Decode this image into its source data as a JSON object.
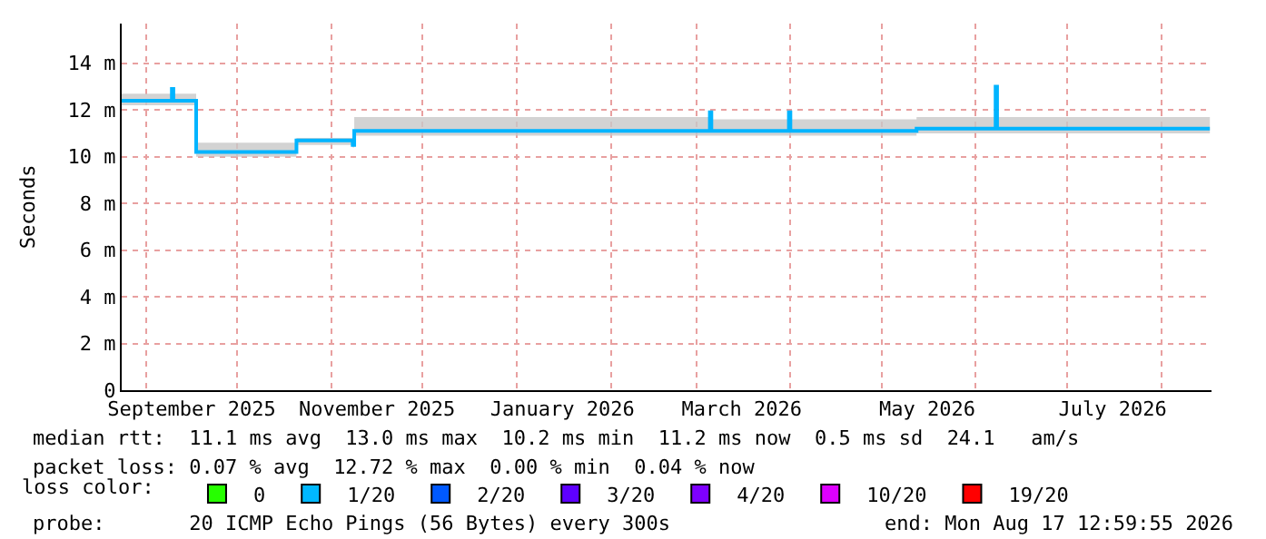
{
  "chart_data": {
    "type": "line",
    "ylabel": "Seconds",
    "legend_title": "loss color:",
    "legend": "bottom",
    "x": [
      "2025-08-24",
      "2025-09-09",
      "2025-09-09T12:00",
      "2025-09-10",
      "2025-09-17",
      "2025-09-17T12:00",
      "2025-10-20",
      "2025-10-20T12:00",
      "2025-11-07",
      "2025-11-08",
      "2025-11-08T12:00",
      "2026-03-05",
      "2026-03-05T12:00",
      "2026-03-06",
      "2026-03-31",
      "2026-03-31T12:00",
      "2026-04-01",
      "2026-05-12",
      "2026-05-12T12:00",
      "2026-06-07",
      "2026-06-07T12:00",
      "2026-06-08",
      "2026-08-17"
    ],
    "series": [
      {
        "color": "#00b4ff",
        "values": [
          12.4,
          12.4,
          12.9,
          12.4,
          12.4,
          10.2,
          10.2,
          10.7,
          10.7,
          10.5,
          11.1,
          11.1,
          11.9,
          11.1,
          11.1,
          11.9,
          11.1,
          11.1,
          11.2,
          11.2,
          13.0,
          11.2,
          11.2
        ],
        "lower": [
          12.2,
          12.2,
          12.2,
          12.2,
          12.2,
          10.0,
          10.0,
          10.5,
          10.5,
          10.4,
          10.9,
          10.9,
          10.9,
          10.9,
          10.9,
          10.9,
          10.9,
          10.9,
          11.0,
          11.0,
          11.0,
          11.0,
          11.0
        ],
        "upper": [
          12.7,
          12.7,
          12.7,
          12.7,
          12.7,
          10.6,
          10.6,
          10.8,
          10.8,
          10.8,
          11.7,
          11.6,
          11.6,
          11.6,
          11.6,
          11.6,
          11.6,
          11.6,
          11.7,
          11.7,
          11.7,
          11.7,
          11.7
        ]
      },
      {
        "name": "0",
        "color": "#26ff00",
        "type": "scatter",
        "marker": "square",
        "values": [
          null,
          null,
          null,
          null,
          null,
          null,
          null,
          null,
          null,
          null,
          null,
          null,
          null,
          null,
          null,
          null,
          null,
          null,
          null,
          null,
          null,
          null,
          null
        ]
      },
      {
        "name": "1/20",
        "color": "#00b8ff",
        "type": "scatter",
        "marker": "square",
        "values": [
          null,
          null,
          null,
          null,
          null,
          null,
          null,
          null,
          null,
          null,
          null,
          null,
          null,
          null,
          null,
          null,
          null,
          null,
          null,
          null,
          null,
          null,
          null
        ]
      },
      {
        "name": "2/20",
        "color": "#0059ff",
        "type": "scatter",
        "marker": "square",
        "values": [
          null,
          null,
          null,
          null,
          null,
          null,
          null,
          null,
          null,
          null,
          null,
          null,
          null,
          null,
          null,
          null,
          null,
          null,
          null,
          null,
          null,
          null,
          null
        ]
      },
      {
        "name": "3/20",
        "color": "#5e00ff",
        "type": "scatter",
        "marker": "square",
        "values": [
          null,
          null,
          null,
          null,
          null,
          null,
          null,
          null,
          null,
          null,
          null,
          null,
          null,
          null,
          null,
          null,
          null,
          null,
          null,
          null,
          null,
          null,
          null
        ]
      },
      {
        "name": "4/20",
        "color": "#7e00ff",
        "type": "scatter",
        "marker": "square",
        "values": [
          null,
          null,
          null,
          null,
          null,
          null,
          null,
          null,
          null,
          null,
          null,
          null,
          null,
          null,
          null,
          null,
          null,
          null,
          null,
          null,
          null,
          null,
          null
        ]
      },
      {
        "name": "10/20",
        "color": "#dd00ff",
        "type": "scatter",
        "marker": "square",
        "values": [
          null,
          null,
          null,
          null,
          null,
          null,
          null,
          null,
          null,
          null,
          null,
          null,
          null,
          null,
          null,
          null,
          null,
          null,
          null,
          null,
          null,
          null,
          null
        ]
      },
      {
        "name": "19/20",
        "color": "#ff0000",
        "type": "scatter",
        "marker": "square",
        "values": [
          null,
          null,
          null,
          null,
          null,
          null,
          null,
          null,
          null,
          null,
          null,
          null,
          null,
          null,
          null,
          null,
          null,
          null,
          null,
          null,
          null,
          null,
          null
        ]
      }
    ],
    "xlim": [
      "2025-08-24",
      "2026-08-17T13:00"
    ],
    "xticks": [
      {
        "value": "2025-09-16",
        "label": "September 2025"
      },
      {
        "value": "2025-11-16",
        "label": "November 2025"
      },
      {
        "value": "2026-01-16",
        "label": "January 2026"
      },
      {
        "value": "2026-03-16",
        "label": "March 2026"
      },
      {
        "value": "2026-05-16",
        "label": "May 2026"
      },
      {
        "value": "2026-07-16",
        "label": "July 2026"
      }
    ],
    "ylim": [
      0,
      15.7
    ],
    "yticks": [
      0,
      {
        "value": 2,
        "label": "2 m"
      },
      {
        "value": 4,
        "label": "4 m"
      },
      {
        "value": 6,
        "label": "6 m"
      },
      {
        "value": 8,
        "label": "8 m"
      },
      {
        "value": 10,
        "label": "10 m"
      },
      {
        "value": 12,
        "label": "12 m"
      },
      {
        "value": 14,
        "label": "14 m"
      }
    ],
    "grid": true,
    "annotations": [
      "median rtt:  11.1 ms avg  13.0 ms max  10.2 ms min  11.2 ms now  0.5 ms sd  24.1   am/s",
      "packet loss: 0.07 % avg  12.72 % max  0.00 % min  0.04 % now",
      "probe:       20 ICMP Echo Pings (56 Bytes) every 300s",
      "end: Mon Aug 17 12:59:55 2026"
    ]
  }
}
